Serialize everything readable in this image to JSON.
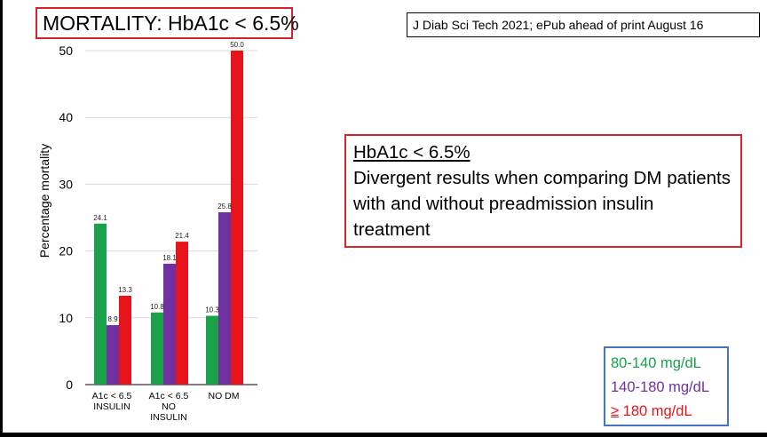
{
  "title": "MORTALITY: HbA1c < 6.5%",
  "citation": "J Diab Sci Tech 2021; ePub ahead of print August 16",
  "note": {
    "heading": "HbA1c < 6.5%",
    "body": "Divergent results when comparing DM patients with and without preadmission insulin treatment"
  },
  "legend": [
    {
      "label": "80-140 mg/dL",
      "color": "#1aa04a"
    },
    {
      "label": "140-180 mg/dL",
      "color": "#7030a0"
    },
    {
      "ge": "≥",
      "label": " 180 mg/dL",
      "color": "#e8141b"
    }
  ],
  "chart_data": {
    "type": "bar",
    "ylabel": "Percentage mortality",
    "ylim": [
      0,
      50
    ],
    "yticks": [
      0,
      10,
      20,
      30,
      40,
      50
    ],
    "grid": true,
    "categories": [
      [
        "A1c < 6.5",
        "INSULIN"
      ],
      [
        "A1c < 6.5",
        "NO",
        "INSULIN"
      ],
      [
        "NO DM"
      ]
    ],
    "series": [
      {
        "name": "80-140 mg/dL",
        "color": "#1aa04a",
        "values": [
          24.1,
          10.8,
          10.3
        ]
      },
      {
        "name": "140-180 mg/dL",
        "color": "#7030a0",
        "values": [
          8.9,
          18.1,
          25.8
        ]
      },
      {
        "name": "≥ 180 mg/dL",
        "color": "#e8141b",
        "values": [
          13.3,
          21.4,
          50.0
        ]
      }
    ],
    "data_labels": [
      [
        "24.1",
        "8.9",
        "13.3"
      ],
      [
        "10.8",
        "18.1",
        "21.4"
      ],
      [
        "10.3",
        "25.8",
        "50.0"
      ]
    ]
  }
}
